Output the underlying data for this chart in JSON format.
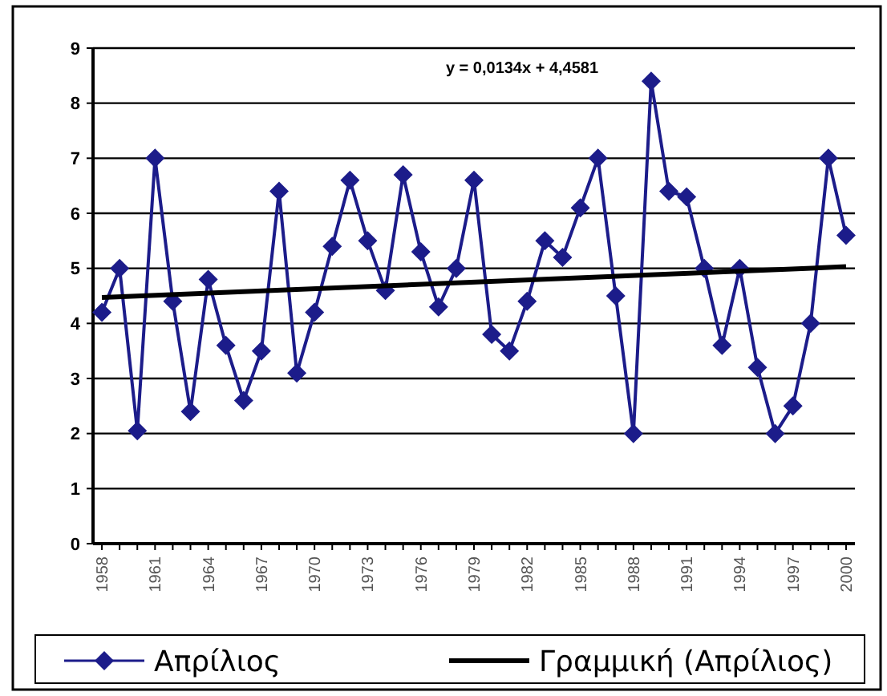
{
  "chart_data": {
    "type": "line",
    "x": [
      1958,
      1959,
      1960,
      1961,
      1962,
      1963,
      1964,
      1965,
      1966,
      1967,
      1968,
      1969,
      1970,
      1971,
      1972,
      1973,
      1974,
      1975,
      1976,
      1977,
      1978,
      1979,
      1980,
      1981,
      1982,
      1983,
      1984,
      1985,
      1986,
      1987,
      1988,
      1989,
      1990,
      1991,
      1992,
      1993,
      1994,
      1995,
      1996,
      1997,
      1998,
      1999,
      2000
    ],
    "series": [
      {
        "name": "Απρίλιος",
        "color": "#1c1c8a",
        "marker": "diamond",
        "values": [
          4.2,
          5.0,
          2.05,
          7.0,
          4.4,
          2.4,
          4.8,
          3.6,
          2.6,
          3.5,
          6.4,
          3.1,
          4.2,
          5.4,
          6.6,
          5.5,
          4.6,
          6.7,
          5.3,
          4.3,
          5.0,
          6.6,
          3.8,
          3.5,
          4.4,
          5.5,
          5.2,
          6.1,
          7.0,
          4.5,
          2.0,
          8.4,
          6.4,
          6.3,
          5.0,
          3.6,
          5.0,
          3.2,
          2.0,
          2.5,
          4.0,
          7.0,
          5.6
        ]
      },
      {
        "name": "Γραμμική (Απρίλιος)",
        "type": "line",
        "color": "#000000",
        "marker": "none",
        "x": [
          1958,
          2000
        ],
        "values": [
          4.47,
          5.03
        ]
      }
    ],
    "xlim": [
      1957.5,
      2000.5
    ],
    "xticks": [
      1958,
      1961,
      1964,
      1967,
      1970,
      1973,
      1976,
      1979,
      1982,
      1985,
      1988,
      1991,
      1994,
      1997,
      2000
    ],
    "ylim": [
      0,
      9
    ],
    "yticks": [
      0,
      1,
      2,
      3,
      4,
      5,
      6,
      7,
      8,
      9
    ],
    "grid": "y",
    "legend": "bottom",
    "annotations": [
      "y = 0,0134x + 4,4581"
    ]
  }
}
